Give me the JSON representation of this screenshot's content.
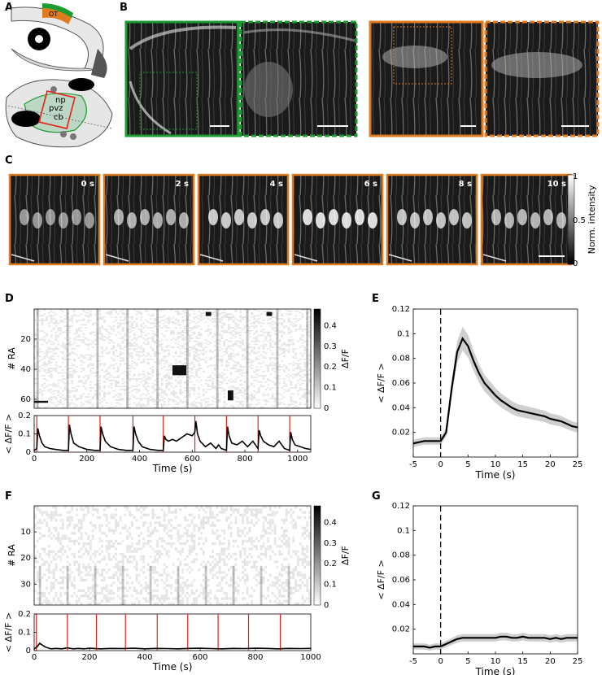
{
  "panels": {
    "A": "A",
    "B": "B",
    "C": "C",
    "D": "D",
    "E": "E",
    "F": "F",
    "G": "G"
  },
  "schematic": {
    "ot": "OT",
    "np": "np",
    "pvz": "pvz",
    "cb": "cb"
  },
  "frames": {
    "labels": [
      "0 s",
      "2 s",
      "4 s",
      "6 s",
      "8 s",
      "10 s"
    ],
    "colorbar": {
      "label": "Norm. intensity",
      "ticks": [
        "1",
        "0.5",
        "0"
      ]
    }
  },
  "colors": {
    "green": "#1a9c2e",
    "orange": "#e07a1f",
    "red": "#e8201a"
  },
  "chart_data": [
    {
      "id": "D_heatmap",
      "type": "heatmap",
      "ylabel": "# RA",
      "yticks": [
        20,
        40,
        60
      ],
      "colorbar": {
        "label": "ΔF/F",
        "ticks": [
          0,
          0.1,
          0.2,
          0.3,
          0.4
        ]
      }
    },
    {
      "id": "D_trace",
      "type": "line",
      "xlabel": "Time (s)",
      "ylabel": "< ΔF/F >",
      "xlim": [
        0,
        1050
      ],
      "ylim": [
        0,
        0.2
      ],
      "xticks": [
        0,
        200,
        400,
        600,
        800,
        1000
      ],
      "yticks": [
        0,
        0.1,
        0.2
      ],
      "stimuli": [
        10,
        130,
        250,
        375,
        490,
        610,
        730,
        850,
        970
      ],
      "x": [
        0,
        10,
        14,
        20,
        30,
        40,
        60,
        80,
        110,
        130,
        134,
        140,
        150,
        170,
        200,
        230,
        250,
        254,
        260,
        270,
        290,
        320,
        350,
        375,
        379,
        385,
        395,
        410,
        440,
        470,
        490,
        494,
        500,
        510,
        525,
        540,
        560,
        580,
        600,
        610,
        614,
        620,
        630,
        650,
        670,
        690,
        700,
        710,
        730,
        734,
        740,
        750,
        770,
        790,
        810,
        830,
        850,
        854,
        860,
        870,
        890,
        910,
        930,
        950,
        970,
        974,
        980,
        990,
        1010,
        1030,
        1050
      ],
      "y": [
        0.01,
        0.02,
        0.13,
        0.09,
        0.05,
        0.03,
        0.02,
        0.015,
        0.01,
        0.01,
        0.15,
        0.1,
        0.05,
        0.03,
        0.015,
        0.01,
        0.01,
        0.14,
        0.1,
        0.06,
        0.03,
        0.015,
        0.01,
        0.01,
        0.14,
        0.1,
        0.06,
        0.03,
        0.015,
        0.01,
        0.01,
        0.09,
        0.07,
        0.06,
        0.07,
        0.06,
        0.08,
        0.1,
        0.09,
        0.11,
        0.17,
        0.1,
        0.06,
        0.03,
        0.05,
        0.02,
        0.04,
        0.02,
        0.01,
        0.14,
        0.09,
        0.05,
        0.04,
        0.06,
        0.03,
        0.06,
        0.02,
        0.12,
        0.09,
        0.06,
        0.04,
        0.03,
        0.06,
        0.02,
        0.01,
        0.11,
        0.07,
        0.04,
        0.03,
        0.02,
        0.015
      ]
    },
    {
      "id": "E_avg",
      "type": "line",
      "xlabel": "Time (s)",
      "ylabel": "< ΔF/F >",
      "xlim": [
        -5,
        25
      ],
      "ylim": [
        0,
        0.12
      ],
      "xticks": [
        -5,
        0,
        5,
        10,
        15,
        20,
        25
      ],
      "yticks": [
        0.02,
        0.04,
        0.06,
        0.08,
        0.1,
        0.12
      ],
      "x": [
        -5,
        -4,
        -3,
        -2,
        -1,
        0,
        1,
        2,
        3,
        4,
        5,
        6,
        7,
        8,
        9,
        10,
        11,
        12,
        13,
        14,
        15,
        16,
        17,
        18,
        19,
        20,
        21,
        22,
        23,
        24,
        25
      ],
      "y": [
        0.011,
        0.012,
        0.013,
        0.013,
        0.013,
        0.013,
        0.02,
        0.055,
        0.085,
        0.096,
        0.09,
        0.078,
        0.068,
        0.06,
        0.055,
        0.05,
        0.046,
        0.043,
        0.04,
        0.038,
        0.037,
        0.036,
        0.035,
        0.034,
        0.033,
        0.031,
        0.03,
        0.029,
        0.027,
        0.025,
        0.024
      ]
    },
    {
      "id": "F_heatmap",
      "type": "heatmap",
      "ylabel": "# RA",
      "yticks": [
        10,
        20,
        30
      ],
      "colorbar": {
        "label": "ΔF/F",
        "ticks": [
          0,
          0.1,
          0.2,
          0.3,
          0.4
        ]
      }
    },
    {
      "id": "F_trace",
      "type": "line",
      "xlabel": "Time (s)",
      "ylabel": "< ΔF/F >",
      "xlim": [
        0,
        1000
      ],
      "ylim": [
        0,
        0.2
      ],
      "xticks": [
        0,
        200,
        400,
        600,
        800,
        1000
      ],
      "yticks": [
        0,
        0.1,
        0.2
      ],
      "stimuli": [
        8,
        120,
        225,
        330,
        445,
        555,
        665,
        775,
        890
      ],
      "x": [
        0,
        10,
        20,
        30,
        40,
        60,
        80,
        100,
        120,
        140,
        160,
        180,
        200,
        240,
        280,
        320,
        360,
        400,
        440,
        480,
        520,
        560,
        600,
        640,
        680,
        720,
        760,
        800,
        840,
        880,
        920,
        960,
        1000
      ],
      "y": [
        0.01,
        0.02,
        0.04,
        0.03,
        0.02,
        0.01,
        0.012,
        0.01,
        0.015,
        0.01,
        0.012,
        0.01,
        0.013,
        0.01,
        0.012,
        0.011,
        0.013,
        0.01,
        0.012,
        0.011,
        0.01,
        0.012,
        0.013,
        0.011,
        0.01,
        0.012,
        0.011,
        0.013,
        0.012,
        0.01,
        0.012,
        0.011,
        0.012
      ]
    },
    {
      "id": "G_avg",
      "type": "line",
      "xlabel": "Time (s)",
      "ylabel": "< ΔF/F >",
      "xlim": [
        -5,
        25
      ],
      "ylim": [
        0,
        0.12
      ],
      "xticks": [
        -5,
        0,
        5,
        10,
        15,
        20,
        25
      ],
      "yticks": [
        0.02,
        0.04,
        0.06,
        0.08,
        0.1,
        0.12
      ],
      "x": [
        -5,
        -4,
        -3,
        -2,
        -1,
        0,
        1,
        2,
        3,
        4,
        5,
        6,
        7,
        8,
        9,
        10,
        11,
        12,
        13,
        14,
        15,
        16,
        17,
        18,
        19,
        20,
        21,
        22,
        23,
        24,
        25
      ],
      "y": [
        0.006,
        0.006,
        0.006,
        0.005,
        0.006,
        0.006,
        0.008,
        0.01,
        0.012,
        0.013,
        0.013,
        0.013,
        0.013,
        0.013,
        0.013,
        0.013,
        0.014,
        0.014,
        0.013,
        0.013,
        0.014,
        0.013,
        0.013,
        0.013,
        0.013,
        0.012,
        0.013,
        0.012,
        0.013,
        0.013,
        0.013
      ]
    }
  ]
}
